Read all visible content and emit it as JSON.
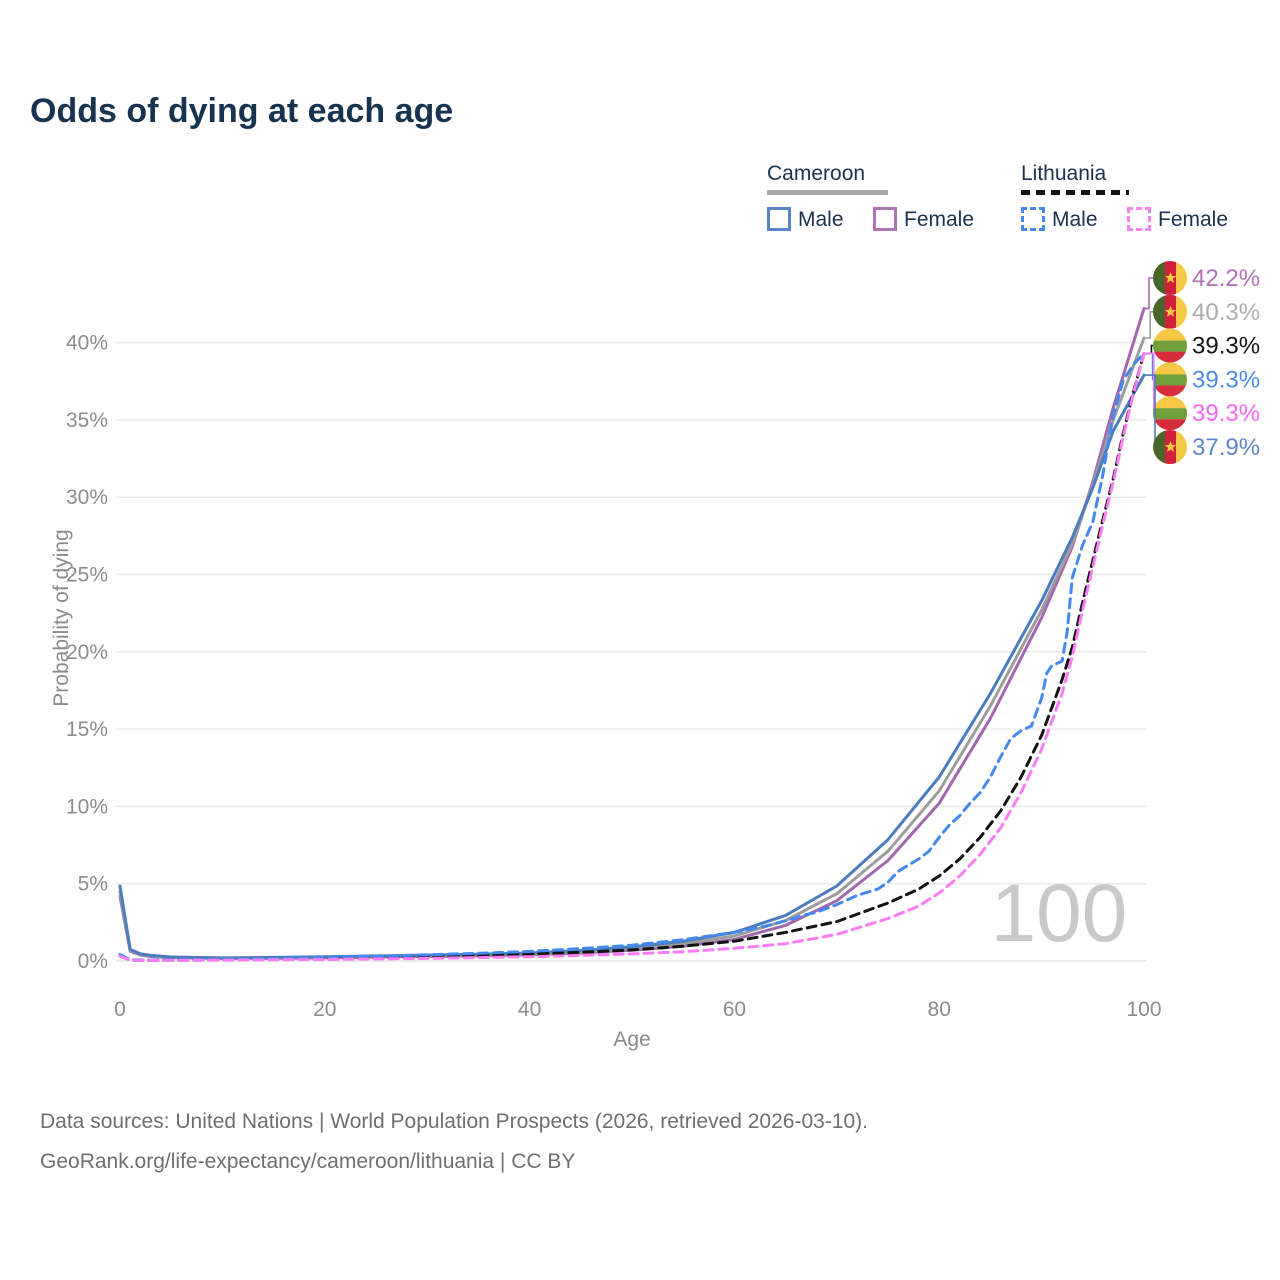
{
  "title": "Odds of dying at each age",
  "legend": {
    "cameroon": {
      "name": "Cameroon",
      "male_label": "Male",
      "female_label": "Female"
    },
    "lithuania": {
      "name": "Lithuania",
      "male_label": "Male",
      "female_label": "Female"
    }
  },
  "watermark": "100",
  "footer": {
    "line1": "Data sources: United Nations | World Population Prospects (2026, retrieved 2026-03-10).",
    "line2": "GeoRank.org/life-expectancy/cameroon/lithuania | CC BY"
  },
  "colors": {
    "cameroon_male": "#4d7cbe",
    "cameroon_both": "#9d9d9d",
    "cameroon_female": "#a268ae",
    "lithuania_male": "#4489f0",
    "lithuania_both": "#141414",
    "lithuania_female": "#fb7cf3",
    "gridline": "#ebebeb",
    "tick_text": "#8c8c8c",
    "watermark": "#c9c9c9",
    "flag_cameroon": [
      "#49652b",
      "#d21f3c",
      "#f6c945",
      "#f7c940"
    ],
    "flag_lithuania": [
      "#f6c845",
      "#6fa03c",
      "#d62d3d"
    ]
  },
  "chart_data": {
    "type": "line",
    "title": "Odds of dying at each age",
    "xlabel": "Age",
    "ylabel": "Probability of dying",
    "xlim": [
      0,
      100
    ],
    "ylim": [
      0,
      40
    ],
    "x_ticks": [
      "0",
      "20",
      "40",
      "60",
      "80",
      "100"
    ],
    "x_tick_values": [
      0,
      20,
      40,
      60,
      80,
      100
    ],
    "y_ticks": [
      "0%",
      "5%",
      "10%",
      "15%",
      "20%",
      "25%",
      "30%",
      "35%",
      "40%"
    ],
    "y_tick_values": [
      0,
      5,
      10,
      15,
      20,
      25,
      30,
      35,
      40
    ],
    "grid": "horizontal-only",
    "legend_position": "top-right",
    "series": [
      {
        "id": "cameroon-female",
        "name": "Cameroon Female",
        "country": "Cameroon",
        "sex": "Female",
        "style": "solid",
        "color": "#a268ae",
        "flag": "cameroon",
        "end_label": "42.2%",
        "end_label_color": "#b070b6",
        "label_row": 0,
        "points": [
          [
            0,
            4.2
          ],
          [
            1,
            0.62
          ],
          [
            2,
            0.38
          ],
          [
            3,
            0.3
          ],
          [
            5,
            0.21
          ],
          [
            10,
            0.16
          ],
          [
            15,
            0.17
          ],
          [
            20,
            0.2
          ],
          [
            25,
            0.25
          ],
          [
            30,
            0.29
          ],
          [
            35,
            0.33
          ],
          [
            40,
            0.4
          ],
          [
            45,
            0.52
          ],
          [
            50,
            0.7
          ],
          [
            55,
            0.95
          ],
          [
            60,
            1.4
          ],
          [
            65,
            2.3
          ],
          [
            70,
            3.9
          ],
          [
            75,
            6.5
          ],
          [
            80,
            10.2
          ],
          [
            85,
            15.7
          ],
          [
            90,
            22.2
          ],
          [
            93,
            26.8
          ],
          [
            95,
            31.0
          ],
          [
            97,
            35.8
          ],
          [
            100,
            42.2
          ]
        ]
      },
      {
        "id": "cameroon-both",
        "name": "Cameroon",
        "country": "Cameroon",
        "sex": "Both",
        "style": "solid",
        "color": "#9d9d9d",
        "flag": "cameroon",
        "end_label": "40.3%",
        "end_label_color": "#acacac",
        "label_row": 1,
        "points": [
          [
            0,
            4.5
          ],
          [
            1,
            0.68
          ],
          [
            2,
            0.42
          ],
          [
            3,
            0.33
          ],
          [
            5,
            0.23
          ],
          [
            10,
            0.18
          ],
          [
            15,
            0.2
          ],
          [
            20,
            0.24
          ],
          [
            25,
            0.29
          ],
          [
            30,
            0.34
          ],
          [
            35,
            0.39
          ],
          [
            40,
            0.46
          ],
          [
            45,
            0.6
          ],
          [
            50,
            0.82
          ],
          [
            55,
            1.12
          ],
          [
            60,
            1.62
          ],
          [
            65,
            2.62
          ],
          [
            70,
            4.35
          ],
          [
            75,
            7.1
          ],
          [
            80,
            11.0
          ],
          [
            85,
            16.5
          ],
          [
            90,
            22.7
          ],
          [
            93,
            27.0
          ],
          [
            95,
            30.8
          ],
          [
            97,
            35.0
          ],
          [
            100,
            40.3
          ]
        ]
      },
      {
        "id": "lithuania-both",
        "name": "Lithuania",
        "country": "Lithuania",
        "sex": "Both",
        "style": "dashed",
        "color": "#141414",
        "flag": "lithuania",
        "end_label": "39.3%",
        "end_label_color": "#141414",
        "label_row": 2,
        "points": [
          [
            0,
            0.36
          ],
          [
            1,
            0.05
          ],
          [
            5,
            0.05
          ],
          [
            10,
            0.07
          ],
          [
            15,
            0.12
          ],
          [
            20,
            0.18
          ],
          [
            25,
            0.23
          ],
          [
            30,
            0.29
          ],
          [
            35,
            0.36
          ],
          [
            40,
            0.44
          ],
          [
            45,
            0.56
          ],
          [
            50,
            0.72
          ],
          [
            55,
            0.96
          ],
          [
            60,
            1.28
          ],
          [
            65,
            1.85
          ],
          [
            70,
            2.55
          ],
          [
            75,
            3.75
          ],
          [
            78,
            4.65
          ],
          [
            80,
            5.5
          ],
          [
            82,
            6.6
          ],
          [
            84,
            8.0
          ],
          [
            86,
            9.7
          ],
          [
            88,
            11.9
          ],
          [
            90,
            14.6
          ],
          [
            92,
            18.2
          ],
          [
            93,
            20.3
          ],
          [
            94,
            23.2
          ],
          [
            95,
            25.9
          ],
          [
            96,
            28.6
          ],
          [
            97,
            31.2
          ],
          [
            98,
            34.2
          ],
          [
            99,
            36.9
          ],
          [
            100,
            39.3
          ]
        ]
      },
      {
        "id": "lithuania-male",
        "name": "Lithuania Male",
        "country": "Lithuania",
        "sex": "Male",
        "style": "dashed",
        "color": "#4489f0",
        "flag": "lithuania",
        "end_label": "39.3%",
        "end_label_color": "#4b8bf0",
        "label_row": 3,
        "points": [
          [
            0,
            0.42
          ],
          [
            1,
            0.07
          ],
          [
            5,
            0.06
          ],
          [
            10,
            0.09
          ],
          [
            15,
            0.16
          ],
          [
            20,
            0.25
          ],
          [
            25,
            0.31
          ],
          [
            30,
            0.4
          ],
          [
            35,
            0.5
          ],
          [
            40,
            0.62
          ],
          [
            45,
            0.8
          ],
          [
            50,
            1.02
          ],
          [
            55,
            1.38
          ],
          [
            60,
            1.85
          ],
          [
            63,
            2.25
          ],
          [
            65,
            2.6
          ],
          [
            67,
            3.0
          ],
          [
            68,
            3.15
          ],
          [
            70,
            3.65
          ],
          [
            72,
            4.25
          ],
          [
            73,
            4.45
          ],
          [
            74,
            4.65
          ],
          [
            75,
            5.1
          ],
          [
            76,
            5.8
          ],
          [
            77,
            6.2
          ],
          [
            78,
            6.6
          ],
          [
            79,
            7.1
          ],
          [
            80,
            8.0
          ],
          [
            81,
            8.8
          ],
          [
            82,
            9.4
          ],
          [
            83,
            10.2
          ],
          [
            84,
            10.9
          ],
          [
            85,
            11.9
          ],
          [
            86,
            13.2
          ],
          [
            87,
            14.4
          ],
          [
            88,
            14.9
          ],
          [
            89,
            15.2
          ],
          [
            90,
            17.0
          ],
          [
            90.5,
            18.6
          ],
          [
            91,
            19.1
          ],
          [
            92,
            19.4
          ],
          [
            92.5,
            21.3
          ],
          [
            93,
            24.8
          ],
          [
            94,
            26.9
          ],
          [
            95,
            28.4
          ],
          [
            96,
            31.5
          ],
          [
            96.5,
            33.5
          ],
          [
            97,
            35.3
          ],
          [
            98,
            37.6
          ],
          [
            99,
            38.6
          ],
          [
            100,
            39.3
          ]
        ]
      },
      {
        "id": "lithuania-female",
        "name": "Lithuania Female",
        "country": "Lithuania",
        "sex": "Female",
        "style": "dashed",
        "color": "#fb7cf3",
        "flag": "lithuania",
        "end_label": "39.3%",
        "end_label_color": "#fb64f5",
        "label_row": 4,
        "points": [
          [
            0,
            0.31
          ],
          [
            1,
            0.04
          ],
          [
            5,
            0.04
          ],
          [
            10,
            0.06
          ],
          [
            15,
            0.08
          ],
          [
            20,
            0.1
          ],
          [
            25,
            0.13
          ],
          [
            30,
            0.17
          ],
          [
            35,
            0.22
          ],
          [
            40,
            0.28
          ],
          [
            45,
            0.36
          ],
          [
            50,
            0.46
          ],
          [
            55,
            0.6
          ],
          [
            60,
            0.82
          ],
          [
            65,
            1.12
          ],
          [
            70,
            1.72
          ],
          [
            75,
            2.75
          ],
          [
            78,
            3.55
          ],
          [
            80,
            4.4
          ],
          [
            82,
            5.5
          ],
          [
            84,
            6.9
          ],
          [
            86,
            8.6
          ],
          [
            88,
            10.9
          ],
          [
            90,
            13.7
          ],
          [
            92,
            17.3
          ],
          [
            93,
            19.7
          ],
          [
            94,
            22.7
          ],
          [
            95,
            25.5
          ],
          [
            96,
            28.3
          ],
          [
            97,
            31.0
          ],
          [
            98,
            34.0
          ],
          [
            99,
            36.8
          ],
          [
            100,
            39.3
          ]
        ]
      },
      {
        "id": "cameroon-male",
        "name": "Cameroon Male",
        "country": "Cameroon",
        "sex": "Male",
        "style": "solid",
        "color": "#4d7cbe",
        "flag": "cameroon",
        "end_label": "37.9%",
        "end_label_color": "#5d86c8",
        "label_row": 5,
        "points": [
          [
            0,
            4.85
          ],
          [
            1,
            0.75
          ],
          [
            2,
            0.46
          ],
          [
            3,
            0.36
          ],
          [
            5,
            0.26
          ],
          [
            10,
            0.2
          ],
          [
            15,
            0.23
          ],
          [
            20,
            0.28
          ],
          [
            25,
            0.33
          ],
          [
            30,
            0.38
          ],
          [
            35,
            0.44
          ],
          [
            40,
            0.52
          ],
          [
            45,
            0.68
          ],
          [
            50,
            0.92
          ],
          [
            55,
            1.28
          ],
          [
            60,
            1.85
          ],
          [
            65,
            2.95
          ],
          [
            70,
            4.85
          ],
          [
            75,
            7.85
          ],
          [
            80,
            11.9
          ],
          [
            85,
            17.3
          ],
          [
            90,
            23.3
          ],
          [
            93,
            27.4
          ],
          [
            95,
            30.6
          ],
          [
            97,
            34.3
          ],
          [
            100,
            37.9
          ]
        ]
      }
    ]
  }
}
